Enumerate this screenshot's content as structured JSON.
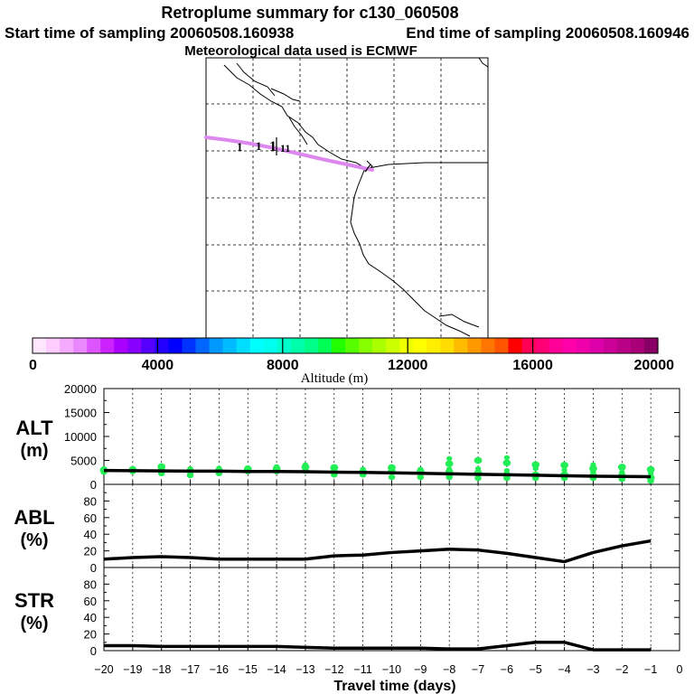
{
  "header": {
    "title": "Retroplume summary for c130_060508",
    "start_label": "Start time of sampling 20060508.160938",
    "end_label": "End time of sampling 20060508.160946",
    "met_label": "Meteorological data used is ECMWF"
  },
  "colorbar": {
    "label": "Altitude (m)",
    "tick_labels": [
      "0",
      "4000",
      "8000",
      "12000",
      "16000",
      "20000"
    ],
    "range": [
      0,
      20000
    ],
    "colors": [
      "#ffe6ff",
      "#ffccff",
      "#f5aaff",
      "#ea88ff",
      "#dd55ff",
      "#cc22ff",
      "#aa00ff",
      "#8800ff",
      "#5500ff",
      "#2200ff",
      "#0000ff",
      "#0033ff",
      "#0066ff",
      "#0099ff",
      "#00bbff",
      "#00ddff",
      "#00ffff",
      "#00ffee",
      "#00ffcc",
      "#00ffaa",
      "#00ff88",
      "#00ff55",
      "#22ff00",
      "#55ff00",
      "#88ff00",
      "#aaff00",
      "#ccff00",
      "#eeff00",
      "#ffff00",
      "#ffee00",
      "#ffdd00",
      "#ffbb00",
      "#ff9900",
      "#ff7700",
      "#ff5500",
      "#ff0000",
      "#ff0055",
      "#ff0077",
      "#ff0099",
      "#ff00aa",
      "#ee00aa",
      "#dd00aa",
      "#cc0099",
      "#bb0088",
      "#aa0077",
      "#880066"
    ]
  },
  "map": {
    "trajectory_color": "#dd88ee",
    "point_labels": [
      "1",
      "1",
      "1",
      "11"
    ]
  },
  "chart_data": [
    {
      "type": "scatter",
      "name": "ALT",
      "ylabel": [
        "ALT",
        "(m)"
      ],
      "ylim": [
        0,
        20000
      ],
      "yticks": [
        0,
        5000,
        10000,
        15000,
        20000
      ],
      "xlim": [
        -20,
        0
      ],
      "point_color": "#22ee55",
      "median_line": {
        "x": [
          -20,
          -19,
          -18,
          -17,
          -16,
          -15,
          -14,
          -13,
          -12,
          -11,
          -10,
          -9,
          -8,
          -7,
          -6,
          -5,
          -4,
          -3,
          -2,
          -1
        ],
        "y": [
          2900,
          2850,
          2800,
          2750,
          2750,
          2700,
          2700,
          2650,
          2550,
          2500,
          2400,
          2300,
          2200,
          2100,
          2000,
          1900,
          1800,
          1700,
          1650,
          1600
        ]
      },
      "scatter": [
        {
          "x": -20,
          "y": [
            2600,
            3000,
            3300
          ]
        },
        {
          "x": -19,
          "y": [
            2700,
            3100
          ]
        },
        {
          "x": -18,
          "y": [
            2300,
            2900,
            3400,
            3700
          ]
        },
        {
          "x": -17,
          "y": [
            1900,
            2800,
            3300
          ]
        },
        {
          "x": -16,
          "y": [
            2300,
            2900,
            3400
          ]
        },
        {
          "x": -15,
          "y": [
            2700,
            3200,
            3500
          ]
        },
        {
          "x": -14,
          "y": [
            2700,
            3300,
            3700
          ]
        },
        {
          "x": -13,
          "y": [
            2800,
            3600,
            4100
          ]
        },
        {
          "x": -12,
          "y": [
            2000,
            2600,
            3100,
            3500
          ]
        },
        {
          "x": -11,
          "y": [
            2000,
            2600,
            3200
          ]
        },
        {
          "x": -10,
          "y": [
            1500,
            2700,
            3200,
            3500
          ]
        },
        {
          "x": -9,
          "y": [
            1500,
            2700,
            3200
          ]
        },
        {
          "x": -8,
          "y": [
            1500,
            2600,
            3200,
            4300,
            5400
          ]
        },
        {
          "x": -7,
          "y": [
            1300,
            2400,
            3300,
            5000
          ]
        },
        {
          "x": -6,
          "y": [
            1300,
            2000,
            2900,
            4500,
            5600
          ]
        },
        {
          "x": -5,
          "y": [
            1300,
            2000,
            3300,
            4100
          ]
        },
        {
          "x": -4,
          "y": [
            1300,
            2000,
            3000,
            4000
          ]
        },
        {
          "x": -3,
          "y": [
            1300,
            1800,
            2600,
            3300,
            4100
          ]
        },
        {
          "x": -2,
          "y": [
            1100,
            1800,
            2600,
            3600
          ]
        },
        {
          "x": -1,
          "y": [
            700,
            1400,
            2300,
            3100
          ]
        }
      ]
    },
    {
      "type": "line",
      "name": "ABL",
      "ylabel": [
        "ABL",
        "(%)"
      ],
      "ylim": [
        0,
        100
      ],
      "yticks": [
        0,
        20,
        40,
        60,
        80
      ],
      "xlim": [
        -20,
        0
      ],
      "series": [
        {
          "name": "ABL",
          "x": [
            -20,
            -19,
            -18,
            -17,
            -16,
            -15,
            -14,
            -13,
            -12,
            -11,
            -10,
            -9,
            -8,
            -7,
            -6,
            -5,
            -4,
            -3,
            -2,
            -1
          ],
          "y": [
            10,
            12,
            13,
            12,
            10,
            10,
            10,
            10,
            14,
            15,
            18,
            20,
            22,
            21,
            17,
            12,
            7,
            18,
            26,
            32
          ]
        }
      ]
    },
    {
      "type": "line",
      "name": "STR",
      "ylabel": [
        "STR",
        "(%)"
      ],
      "ylim": [
        0,
        100
      ],
      "yticks": [
        0,
        20,
        40,
        60,
        80
      ],
      "xlim": [
        -20,
        0
      ],
      "series": [
        {
          "name": "STR",
          "x": [
            -20,
            -19,
            -18,
            -17,
            -16,
            -15,
            -14,
            -13,
            -12,
            -11,
            -10,
            -9,
            -8,
            -7,
            -6,
            -5,
            -4,
            -3,
            -2,
            -1
          ],
          "y": [
            6,
            6,
            5,
            5,
            5,
            5,
            5,
            4,
            3,
            3,
            3,
            3,
            2,
            2,
            6,
            10,
            10,
            1,
            1,
            1
          ]
        }
      ]
    }
  ],
  "xaxis": {
    "label": "Travel time (days)",
    "ticks": [
      -20,
      -19,
      -18,
      -17,
      -16,
      -15,
      -14,
      -13,
      -12,
      -11,
      -10,
      -9,
      -8,
      -7,
      -6,
      -5,
      -4,
      -3,
      -2,
      -1,
      0
    ],
    "tick_labels": [
      "−20",
      "−19",
      "−18",
      "−17",
      "−16",
      "−15",
      "−14",
      "−13",
      "−12",
      "−11",
      "−10",
      "−9",
      "−8",
      "−7",
      "−6",
      "−5",
      "−4",
      "−3",
      "−2",
      "−1",
      "0"
    ]
  }
}
